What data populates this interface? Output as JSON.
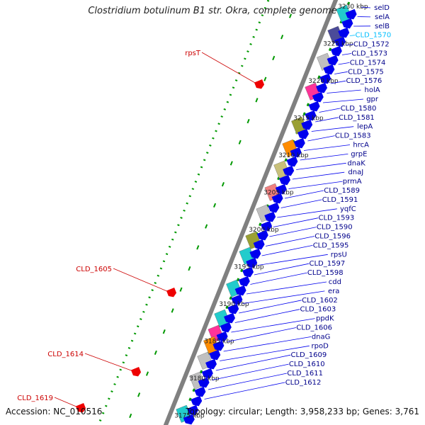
{
  "title": "Clostridium botulinum B1 str. Okra, complete genome",
  "footer": {
    "accession": "Accession: NC_010516",
    "topology": "Topology: circular; Length: 3,958,233 bp; Genes: 3,761"
  },
  "colors": {
    "backbone": "#808080",
    "gene_default": "#0000ee",
    "gene_label": "#00008b",
    "gene_label_highlight": "#00bfff",
    "minus_strand_label": "#cc0000",
    "tick_green": "#009900",
    "accent_grey": "#c0c0c0",
    "accent_olive": "#9aa033",
    "accent_khaki": "#c8c07a",
    "accent_orange": "#ff8c00",
    "accent_salmon": "#f08080",
    "accent_magenta": "#ff3399",
    "accent_cyan": "#22cccc",
    "accent_navy": "#4b4b99"
  },
  "scale_labels": [
    "3230 kbp",
    "3225 kbp",
    "3220 kbp",
    "3215 kbp",
    "3210 kbp",
    "3205 kbp",
    "3200 kbp",
    "3195 kbp",
    "3190 kbp",
    "3185 kbp",
    "3180 kbp",
    "3175 kbp"
  ],
  "plus_strand_labels": [
    "selD",
    "selA",
    "selB",
    "CLD_1570",
    "CLD_1572",
    "CLD_1573",
    "CLD_1574",
    "CLD_1575",
    "CLD_1576",
    "holA",
    "gpr",
    "CLD_1580",
    "CLD_1581",
    "lepA",
    "CLD_1583",
    "hrcA",
    "grpE",
    "dnaK",
    "dnaJ",
    "prmA",
    "CLD_1589",
    "CLD_1591",
    "yqfC",
    "CLD_1593",
    "CLD_1590",
    "CLD_1596",
    "CLD_1595",
    "rpsU",
    "CLD_1597",
    "CLD_1598",
    "cdd",
    "era",
    "CLD_1602",
    "CLD_1603",
    "ppdK",
    "CLD_1606",
    "dnaG",
    "rpoD",
    "CLD_1609",
    "CLD_1610",
    "CLD_1611",
    "CLD_1612"
  ],
  "highlighted_label": "CLD_1570",
  "minus_strand_labels": [
    "rpsT",
    "CLD_1605",
    "CLD_1614",
    "CLD_1619"
  ]
}
